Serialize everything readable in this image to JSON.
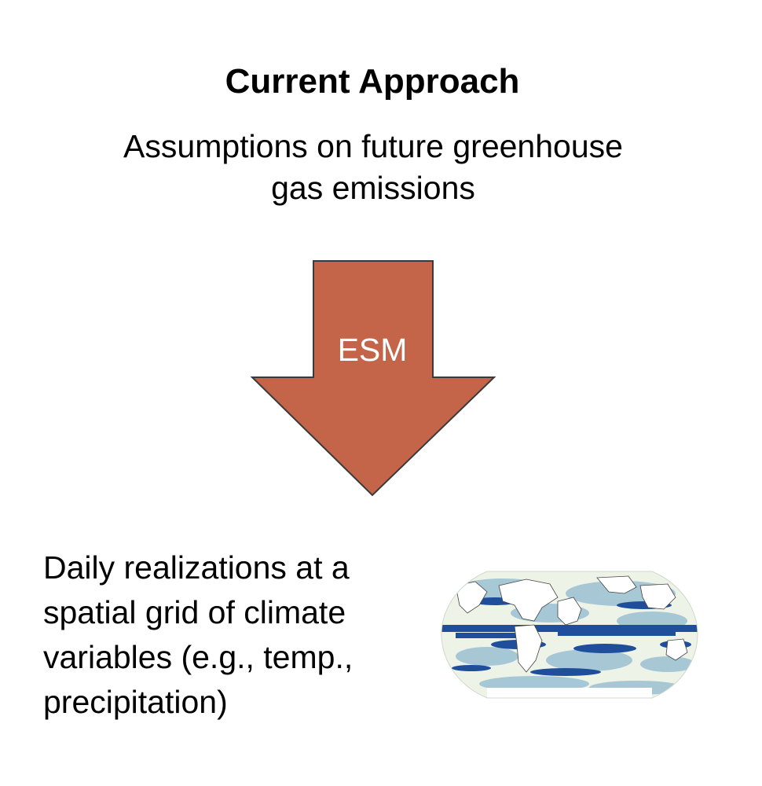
{
  "title": "Current Approach",
  "input": {
    "line1": "Assumptions on future greenhouse",
    "line2": "gas emissions"
  },
  "arrow": {
    "label": "ESM",
    "fill_color": "#c4654a",
    "stroke_color": "#3a3a3a"
  },
  "output": {
    "line1": "Daily realizations at a",
    "line2": "spatial grid of climate",
    "line3": "variables (e.g., temp.,",
    "line4": "precipitation)"
  },
  "map": {
    "icon": "world-map-icon",
    "colors": {
      "ocean_light": "#eef3e8",
      "ocean_mid": "#8fb9cf",
      "ocean_dark": "#1f4f9a",
      "land": "#ffffff"
    }
  }
}
